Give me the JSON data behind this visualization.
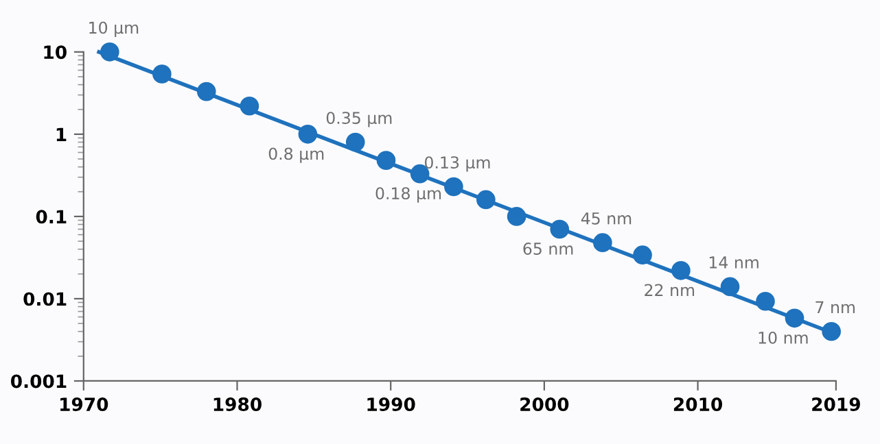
{
  "chart_data": {
    "type": "scatter",
    "log": "y",
    "xlim": [
      1970,
      2019
    ],
    "ylim": [
      0.001,
      10
    ],
    "xticks": [
      1970,
      1980,
      1990,
      2000,
      2010,
      2019
    ],
    "yticks": [
      0.001,
      0.01,
      0.1,
      1,
      10
    ],
    "grid": false,
    "legend": false,
    "series": [
      {
        "marker": "circle",
        "color": "#1f72bd",
        "x": [
          1971.7,
          1975.1,
          1978.0,
          1980.8,
          1984.6,
          1987.7,
          1989.7,
          1991.9,
          1994.1,
          1996.2,
          1998.2,
          2001.0,
          2003.8,
          2006.4,
          2008.9,
          2012.1,
          2014.4,
          2016.3,
          2018.7
        ],
        "values": [
          10,
          5.4,
          3.3,
          2.2,
          1.0,
          0.8,
          0.48,
          0.33,
          0.23,
          0.16,
          0.1,
          0.07,
          0.048,
          0.034,
          0.022,
          0.014,
          0.0093,
          0.0058,
          0.004
        ]
      },
      {
        "type": "line",
        "marker": "none",
        "color": "#1f72bd",
        "x": [
          1971.0,
          2019
        ],
        "values": [
          10,
          0.0037
        ]
      }
    ],
    "annotations": [
      {
        "text": "10 µm",
        "x": 1971.7,
        "y": 10
      },
      {
        "text": "0.8 µm",
        "x": 1984.6,
        "y": 1.0
      },
      {
        "text": "0.35 µm",
        "x": 1987.7,
        "y": 0.8
      },
      {
        "text": "0.18 µm",
        "x": 1991.9,
        "y": 0.33
      },
      {
        "text": "0.13 µm",
        "x": 1994.1,
        "y": 0.23
      },
      {
        "text": "65 nm",
        "x": 2001.0,
        "y": 0.07
      },
      {
        "text": "45 nm",
        "x": 2003.8,
        "y": 0.048
      },
      {
        "text": "22 nm",
        "x": 2008.9,
        "y": 0.022
      },
      {
        "text": "14 nm",
        "x": 2012.1,
        "y": 0.014
      },
      {
        "text": "10 nm",
        "x": 2016.3,
        "y": 0.0058
      },
      {
        "text": "7 nm",
        "x": 2018.7,
        "y": 0.004
      }
    ]
  }
}
